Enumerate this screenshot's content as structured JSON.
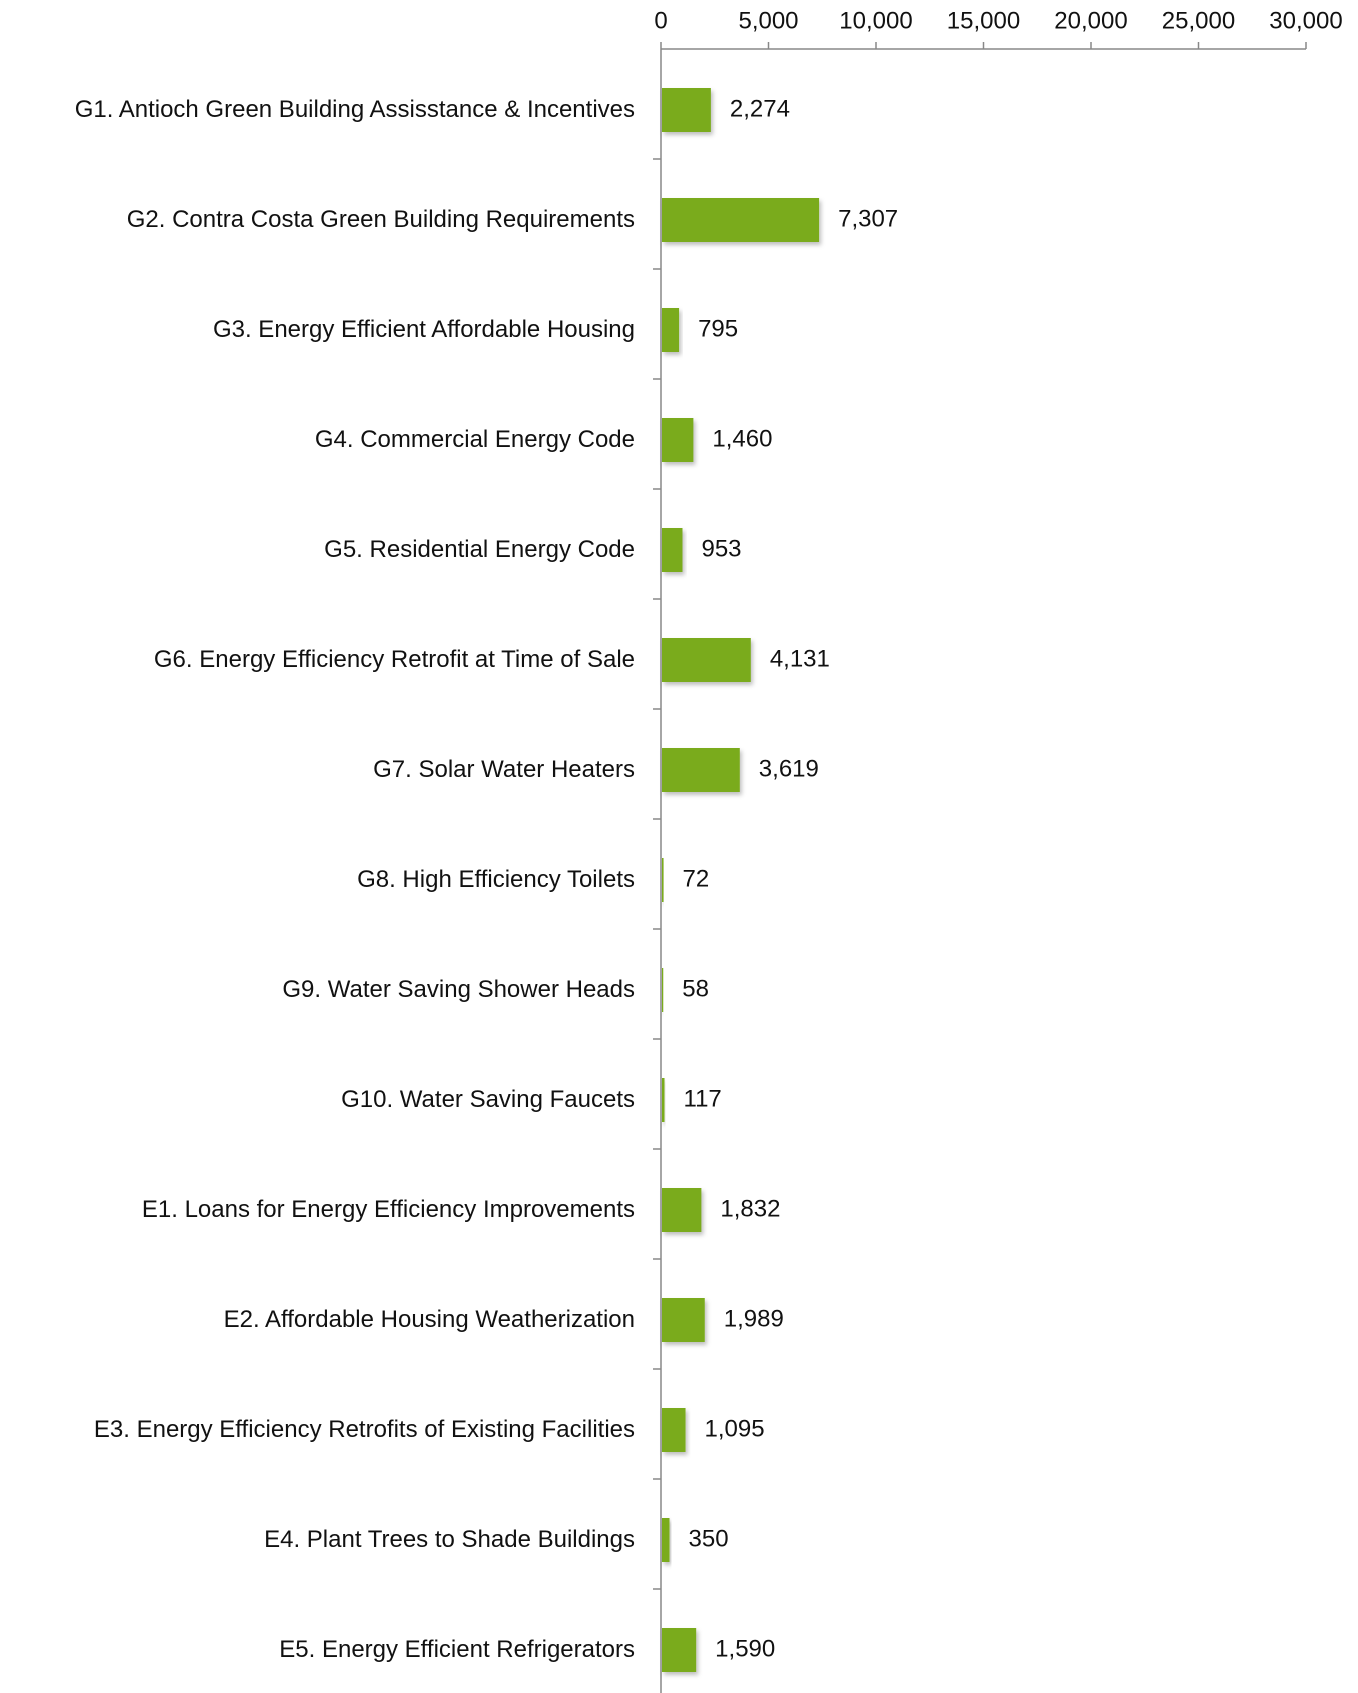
{
  "chart_data": {
    "type": "bar",
    "orientation": "horizontal",
    "categories": [
      "G1. Antioch Green Building Assisstance & Incentives",
      "G2. Contra Costa Green Building Requirements",
      "G3. Energy Efficient Affordable Housing",
      "G4. Commercial Energy Code",
      "G5. Residential Energy Code",
      "G6. Energy Efficiency Retrofit at Time of Sale",
      "G7. Solar Water Heaters",
      "G8. High Efficiency Toilets",
      "G9. Water Saving Shower Heads",
      "G10. Water Saving Faucets",
      "E1. Loans for Energy Efficiency Improvements",
      "E2. Affordable Housing Weatherization",
      "E3. Energy Efficiency Retrofits of Existing Facilities",
      "E4. Plant Trees to Shade Buildings",
      "E5. Energy Efficient Refrigerators"
    ],
    "values": [
      2274,
      7307,
      795,
      1460,
      953,
      4131,
      3619,
      72,
      58,
      117,
      1832,
      1989,
      1095,
      350,
      1590
    ],
    "value_labels": [
      "2,274",
      "7,307",
      "795",
      "1,460",
      "953",
      "4,131",
      "3,619",
      "72",
      "58",
      "117",
      "1,832",
      "1,989",
      "1,095",
      "350",
      "1,590"
    ],
    "color": "#7aab1e",
    "xlim": [
      0,
      30000
    ],
    "xticks": [
      0,
      {
        "value": 5000,
        "label": "5,000"
      },
      {
        "value": 10000,
        "label": "10,000"
      },
      {
        "value": 15000,
        "label": "15,000"
      },
      {
        "value": 20000,
        "label": "20,000"
      },
      {
        "value": 25000,
        "label": "25,000"
      },
      {
        "value": 30000,
        "label": "30,000"
      }
    ],
    "grid": false
  }
}
